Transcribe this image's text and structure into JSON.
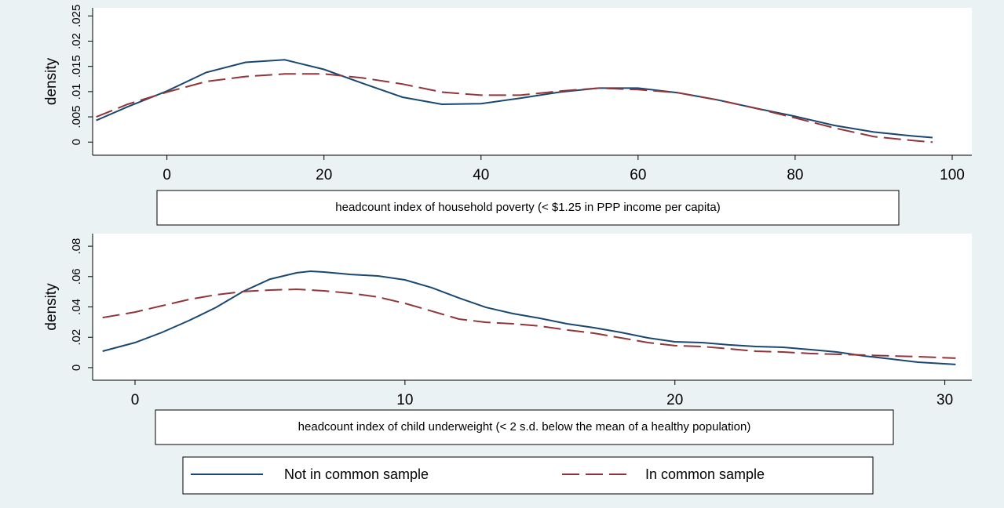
{
  "chart_data": [
    {
      "type": "line",
      "x_label": "headcount index of household poverty (< $1.25 in PPP income per capita)",
      "y_label": "density",
      "x": [
        -9,
        -5,
        0,
        5,
        10,
        15,
        20,
        25,
        30,
        35,
        40,
        45,
        50,
        55,
        60,
        65,
        70,
        75,
        80,
        85,
        90,
        95,
        97.5
      ],
      "series": [
        {
          "name": "Not in common sample",
          "color": "#1a476f",
          "style": "solid",
          "values": [
            0.0043,
            0.007,
            0.0101,
            0.0138,
            0.0158,
            0.0163,
            0.0144,
            0.0116,
            0.0089,
            0.0075,
            0.0076,
            0.0087,
            0.0099,
            0.0107,
            0.0107,
            0.0098,
            0.0084,
            0.0067,
            0.0051,
            0.0033,
            0.002,
            0.0012,
            0.0009
          ]
        },
        {
          "name": "In common sample",
          "color": "#90353b",
          "style": "dashed",
          "values": [
            0.005,
            0.0075,
            0.0099,
            0.012,
            0.013,
            0.0135,
            0.0135,
            0.0127,
            0.0115,
            0.0099,
            0.0093,
            0.0093,
            0.0101,
            0.0107,
            0.0104,
            0.0098,
            0.0084,
            0.0067,
            0.0048,
            0.0028,
            0.0011,
            0.0003,
            0
          ]
        }
      ],
      "xlim": [
        -9.46,
        102.5
      ],
      "xticks": [
        0,
        20,
        40,
        60,
        80,
        100
      ],
      "ylim": [
        -0.0026,
        0.0266
      ],
      "yticks": [
        0,
        {
          "value": 0.005,
          "label": ".005"
        },
        {
          "value": 0.01,
          "label": ".01"
        },
        {
          "value": 0.015,
          "label": ".015"
        },
        {
          "value": 0.02,
          "label": ".02"
        },
        {
          "value": 0.025,
          "label": ".025"
        }
      ]
    },
    {
      "type": "line",
      "x_label": "headcount index of child underweight (< 2 s.d. below the mean of a healthy population)",
      "y_label": "density",
      "x": [
        -1.2,
        0,
        1,
        2,
        3,
        4,
        5,
        6,
        6.5,
        7,
        8,
        9,
        10,
        11,
        12,
        13,
        14,
        15,
        16,
        17,
        18,
        19,
        20,
        21,
        22,
        23,
        24,
        25,
        26,
        27,
        28,
        29,
        30.4
      ],
      "series": [
        {
          "color": "#1a476f",
          "style": "solid",
          "values": [
            0.0108,
            0.0165,
            0.0232,
            0.031,
            0.0397,
            0.0501,
            0.0583,
            0.0625,
            0.0635,
            0.063,
            0.0614,
            0.0604,
            0.0578,
            0.0526,
            0.0459,
            0.0397,
            0.0356,
            0.0325,
            0.0289,
            0.0263,
            0.0232,
            0.0196,
            0.017,
            0.0165,
            0.015,
            0.0139,
            0.0134,
            0.0119,
            0.0103,
            0.0077,
            0.0057,
            0.0036,
            0.0021
          ]
        },
        {
          "color": "#90353b",
          "style": "dashed",
          "values": [
            0.033,
            0.0366,
            0.0408,
            0.0449,
            0.048,
            0.0501,
            0.0511,
            0.0516,
            0.0511,
            0.0506,
            0.049,
            0.0465,
            0.0423,
            0.0372,
            0.032,
            0.0299,
            0.0289,
            0.0274,
            0.0248,
            0.0227,
            0.0196,
            0.0165,
            0.0145,
            0.0139,
            0.0124,
            0.0108,
            0.0103,
            0.0093,
            0.0088,
            0.0083,
            0.0077,
            0.0072,
            0.0062
          ]
        }
      ],
      "xlim": [
        -1.57,
        31.0
      ],
      "xticks": [
        0,
        10,
        20,
        30
      ],
      "ylim": [
        -0.0083,
        0.0883
      ],
      "yticks": [
        0,
        {
          "value": 0.02,
          "label": ".02"
        },
        {
          "value": 0.04,
          "label": ".04"
        },
        {
          "value": 0.06,
          "label": ".06"
        },
        {
          "value": 0.08,
          "label": ".08"
        }
      ]
    }
  ]
}
